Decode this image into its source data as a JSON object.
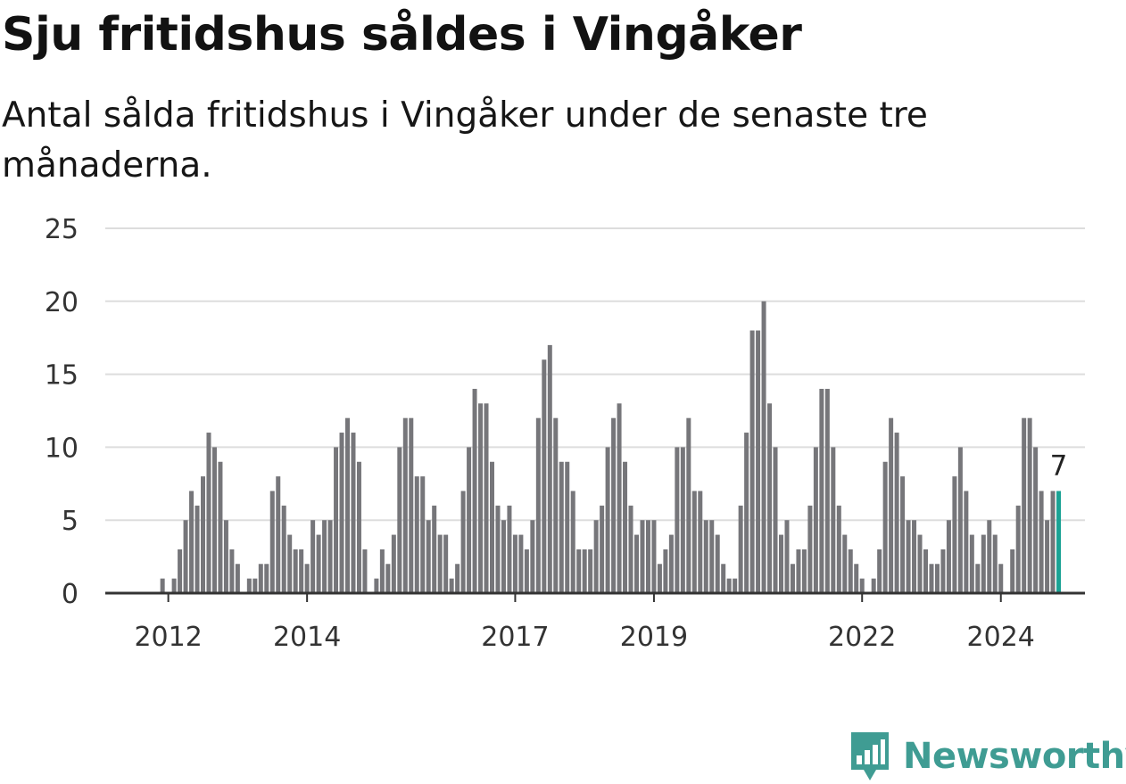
{
  "header": {
    "title": "Sju fritidshus såldes i Vingåker",
    "subtitle": "Antal sålda fritidshus i Vingåker under de senaste tre månaderna."
  },
  "branding": {
    "name": "Newsworthy",
    "icon": "chart-flag-icon"
  },
  "colors": {
    "bar": "#76767a",
    "highlight": "#1aa294",
    "grid": "#dddddd",
    "axis": "#333333",
    "brand": "#3f9c93"
  },
  "chart_data": {
    "type": "bar",
    "title": "Sju fritidshus såldes i Vingåker",
    "subtitle": "Antal sålda fritidshus i Vingåker under de senaste tre månaderna.",
    "xlabel": "",
    "ylabel": "",
    "ylim": [
      0,
      25
    ],
    "yticks": [
      "0",
      "5",
      "10",
      "15",
      "20",
      "25"
    ],
    "xticks": [
      "2012",
      "2014",
      "2017",
      "2019",
      "2022",
      "2024"
    ],
    "grid": true,
    "legend": "none",
    "x_start": "2011-04",
    "frequency": "monthly",
    "values": [
      0,
      0,
      0,
      0,
      0,
      0,
      0,
      0,
      1,
      0,
      1,
      3,
      5,
      7,
      6,
      8,
      11,
      10,
      9,
      5,
      3,
      2,
      0,
      1,
      1,
      2,
      2,
      7,
      8,
      6,
      4,
      3,
      3,
      2,
      5,
      4,
      5,
      5,
      10,
      11,
      12,
      11,
      9,
      3,
      0,
      1,
      3,
      2,
      4,
      10,
      12,
      12,
      8,
      8,
      5,
      6,
      4,
      4,
      1,
      2,
      7,
      10,
      14,
      13,
      13,
      9,
      6,
      5,
      6,
      4,
      4,
      3,
      5,
      12,
      16,
      17,
      12,
      9,
      9,
      7,
      3,
      3,
      3,
      5,
      6,
      10,
      12,
      13,
      9,
      6,
      4,
      5,
      5,
      5,
      2,
      3,
      4,
      10,
      10,
      12,
      7,
      7,
      5,
      5,
      4,
      2,
      1,
      1,
      6,
      11,
      18,
      18,
      20,
      13,
      10,
      4,
      5,
      2,
      3,
      3,
      6,
      10,
      14,
      14,
      10,
      6,
      4,
      3,
      2,
      1,
      0,
      1,
      3,
      9,
      12,
      11,
      8,
      5,
      5,
      4,
      3,
      2,
      2,
      3,
      5,
      8,
      10,
      7,
      4,
      2,
      4,
      5,
      4,
      2,
      0,
      3,
      6,
      12,
      12,
      10,
      7,
      5,
      7,
      7
    ],
    "highlight_last": true,
    "last_label": "7"
  }
}
